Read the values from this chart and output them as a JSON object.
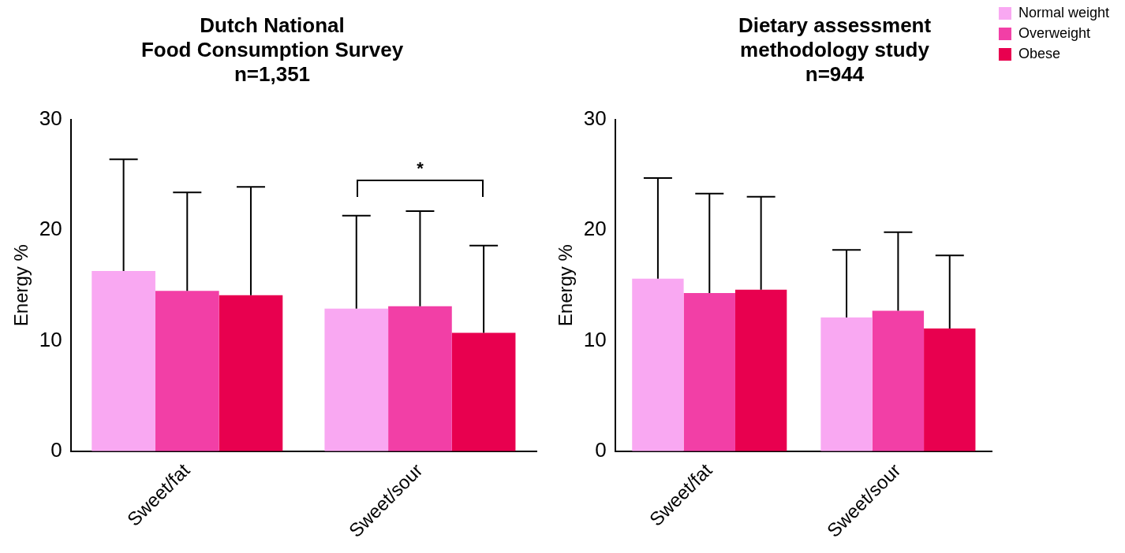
{
  "chart_data": [
    {
      "type": "bar",
      "title": "Dutch National\nFood Consumption Survey",
      "subtitle": "n=1,351",
      "ylabel": "Energy %",
      "categories": [
        "Sweet/fat",
        "Sweet/sour"
      ],
      "series": [
        {
          "color": "#f9a8f2",
          "values": [
            16.3,
            12.9
          ],
          "errors": [
            [
              16.3,
              26.4
            ],
            [
              12.9,
              21.3
            ]
          ]
        },
        {
          "color": "#f23fa6",
          "values": [
            14.5,
            13.1
          ],
          "errors": [
            [
              14.5,
              23.4
            ],
            [
              13.1,
              21.7
            ]
          ]
        },
        {
          "color": "#e8004f",
          "values": [
            14.1,
            10.7
          ],
          "errors": [
            [
              14.1,
              23.9
            ],
            [
              10.7,
              18.6
            ]
          ]
        }
      ],
      "ylim": [
        0,
        30
      ],
      "yticks": [
        0,
        10,
        20,
        30
      ],
      "grid": false,
      "legend": false,
      "annotations": [
        "*"
      ]
    },
    {
      "type": "bar",
      "title": "Dietary assessment\nmethodology study",
      "subtitle": "n=944",
      "ylabel": "Energy %",
      "categories": [
        "Sweet/fat",
        "Sweet/sour"
      ],
      "series": [
        {
          "name": "Normal weight",
          "color": "#f9a8f2",
          "values": [
            15.6,
            12.1
          ],
          "errors": [
            [
              15.6,
              24.7
            ],
            [
              12.1,
              18.2
            ]
          ]
        },
        {
          "name": "Overweight",
          "color": "#f23fa6",
          "values": [
            14.3,
            12.7
          ],
          "errors": [
            [
              14.3,
              23.3
            ],
            [
              12.7,
              19.8
            ]
          ]
        },
        {
          "name": "Obese",
          "color": "#e8004f",
          "values": [
            14.6,
            11.1
          ],
          "errors": [
            [
              14.6,
              23.0
            ],
            [
              11.1,
              17.7
            ]
          ]
        }
      ],
      "ylim": [
        0,
        30
      ],
      "yticks": [
        0,
        10,
        20,
        30
      ],
      "grid": false,
      "legend": "top right"
    }
  ]
}
